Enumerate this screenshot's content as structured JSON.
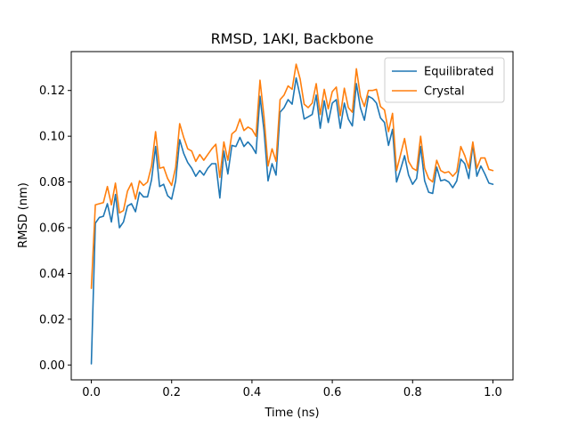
{
  "chart_data": {
    "type": "line",
    "title": "RMSD, 1AKI, Backbone",
    "xlabel": "Time (ns)",
    "ylabel": "RMSD (nm)",
    "xlim": [
      -0.05,
      1.05
    ],
    "ylim": [
      -0.0065,
      0.137
    ],
    "xticks": [
      0.0,
      0.2,
      0.4,
      0.6,
      0.8,
      1.0
    ],
    "xtick_labels": [
      "0.0",
      "0.2",
      "0.4",
      "0.6",
      "0.8",
      "1.0"
    ],
    "yticks": [
      0.0,
      0.02,
      0.04,
      0.06,
      0.08,
      0.1,
      0.12
    ],
    "ytick_labels": [
      "0.00",
      "0.02",
      "0.04",
      "0.06",
      "0.08",
      "0.10",
      "0.12"
    ],
    "grid": false,
    "legend_position": "top-right",
    "x": [
      0.0,
      0.01,
      0.02,
      0.03,
      0.04,
      0.05,
      0.06,
      0.07,
      0.08,
      0.09,
      0.1,
      0.11,
      0.12,
      0.13,
      0.14,
      0.15,
      0.16,
      0.17,
      0.18,
      0.19,
      0.2,
      0.21,
      0.22,
      0.23,
      0.24,
      0.25,
      0.26,
      0.27,
      0.28,
      0.29,
      0.3,
      0.31,
      0.32,
      0.33,
      0.34,
      0.35,
      0.36,
      0.37,
      0.38,
      0.39,
      0.4,
      0.41,
      0.42,
      0.43,
      0.44,
      0.45,
      0.46,
      0.47,
      0.48,
      0.49,
      0.5,
      0.51,
      0.52,
      0.53,
      0.54,
      0.55,
      0.56,
      0.57,
      0.58,
      0.59,
      0.6,
      0.61,
      0.62,
      0.63,
      0.64,
      0.65,
      0.66,
      0.67,
      0.68,
      0.69,
      0.7,
      0.71,
      0.72,
      0.73,
      0.74,
      0.75,
      0.76,
      0.77,
      0.78,
      0.79,
      0.8,
      0.81,
      0.82,
      0.83,
      0.84,
      0.85,
      0.86,
      0.87,
      0.88,
      0.89,
      0.9,
      0.91,
      0.92,
      0.93,
      0.94,
      0.95,
      0.96,
      0.97,
      0.98,
      0.99,
      1.0
    ],
    "series": [
      {
        "name": "Equilibrated",
        "color": "#1f77b4",
        "values": [
          0.0005,
          0.062,
          0.0645,
          0.065,
          0.0705,
          0.0625,
          0.0745,
          0.06,
          0.0625,
          0.0695,
          0.0705,
          0.067,
          0.0755,
          0.0735,
          0.0735,
          0.081,
          0.0955,
          0.078,
          0.079,
          0.074,
          0.0725,
          0.0805,
          0.0985,
          0.0925,
          0.0885,
          0.086,
          0.0825,
          0.085,
          0.083,
          0.086,
          0.088,
          0.088,
          0.073,
          0.0935,
          0.0835,
          0.096,
          0.0955,
          0.0995,
          0.0955,
          0.0975,
          0.0955,
          0.0925,
          0.1175,
          0.1025,
          0.0805,
          0.088,
          0.083,
          0.1105,
          0.1125,
          0.116,
          0.114,
          0.1255,
          0.1175,
          0.1075,
          0.1085,
          0.1095,
          0.118,
          0.1035,
          0.1155,
          0.106,
          0.1145,
          0.116,
          0.1035,
          0.1145,
          0.1075,
          0.1045,
          0.123,
          0.1125,
          0.107,
          0.1175,
          0.1165,
          0.1145,
          0.108,
          0.106,
          0.096,
          0.103,
          0.08,
          0.0855,
          0.0915,
          0.083,
          0.079,
          0.0815,
          0.0955,
          0.0805,
          0.0755,
          0.075,
          0.0865,
          0.0805,
          0.081,
          0.08,
          0.0775,
          0.0805,
          0.09,
          0.088,
          0.0815,
          0.0965,
          0.0825,
          0.087,
          0.0835,
          0.0795,
          0.079
        ]
      },
      {
        "name": "Crystal",
        "color": "#ff7f0e",
        "values": [
          0.0335,
          0.07,
          0.0705,
          0.071,
          0.078,
          0.07,
          0.0795,
          0.0665,
          0.0675,
          0.076,
          0.0795,
          0.0725,
          0.0805,
          0.0785,
          0.08,
          0.087,
          0.102,
          0.086,
          0.0865,
          0.0815,
          0.0785,
          0.0865,
          0.1055,
          0.0995,
          0.0945,
          0.0935,
          0.089,
          0.092,
          0.0895,
          0.092,
          0.0945,
          0.0965,
          0.082,
          0.0975,
          0.0895,
          0.101,
          0.1025,
          0.1075,
          0.1025,
          0.104,
          0.103,
          0.1,
          0.1245,
          0.1085,
          0.087,
          0.0945,
          0.089,
          0.116,
          0.118,
          0.122,
          0.1205,
          0.1315,
          0.125,
          0.114,
          0.1125,
          0.1145,
          0.123,
          0.1095,
          0.1205,
          0.112,
          0.1195,
          0.1215,
          0.109,
          0.121,
          0.1125,
          0.1105,
          0.1295,
          0.1175,
          0.113,
          0.12,
          0.12,
          0.1205,
          0.113,
          0.1115,
          0.102,
          0.11,
          0.085,
          0.092,
          0.099,
          0.089,
          0.086,
          0.085,
          0.1,
          0.086,
          0.0815,
          0.08,
          0.0895,
          0.085,
          0.084,
          0.0845,
          0.0825,
          0.0845,
          0.0955,
          0.0915,
          0.086,
          0.0975,
          0.086,
          0.0905,
          0.0905,
          0.0855,
          0.085
        ]
      }
    ]
  }
}
